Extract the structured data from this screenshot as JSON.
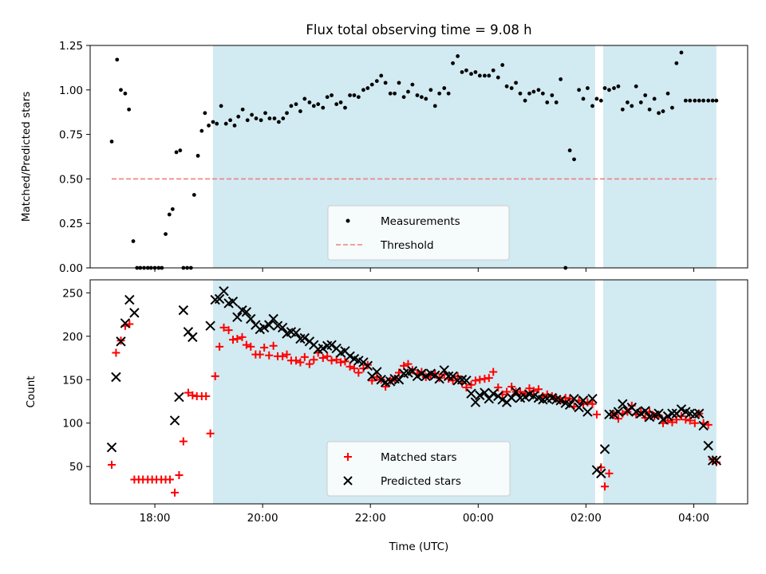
{
  "title": "Flux total observing time = 9.08 h",
  "colors": {
    "shade": "#add8e6",
    "measurement": "#000000",
    "threshold": "#f08080",
    "matched": "#ff0000",
    "predicted": "#000000"
  },
  "chart_data": [
    {
      "type": "scatter",
      "name": "ratio-panel",
      "ylabel": "Matched/Predicted stars",
      "x_range_hours": [
        16.8,
        29.0
      ],
      "ylim": [
        0,
        1.25
      ],
      "yticks": [
        0.0,
        0.25,
        0.5,
        0.75,
        1.0,
        1.25
      ],
      "ytick_labels": [
        "0.00",
        "0.25",
        "0.50",
        "0.75",
        "1.00",
        "1.25"
      ],
      "shaded_intervals_hours": [
        [
          19.08,
          26.17
        ],
        [
          26.32,
          28.42
        ]
      ],
      "threshold": {
        "value": 0.5,
        "x_start": 17.2,
        "x_end": 28.42,
        "label": "Threshold"
      },
      "series": [
        {
          "name": "Measurements",
          "x": [
            17.2,
            17.3,
            17.37,
            17.45,
            17.52,
            17.6,
            17.67,
            17.73,
            17.8,
            17.87,
            17.93,
            18.0,
            18.07,
            18.13,
            18.2,
            18.27,
            18.33,
            18.4,
            18.47,
            18.53,
            18.6,
            18.67,
            18.73,
            18.8,
            18.87,
            18.93,
            19.0,
            19.08,
            19.15,
            19.23,
            19.32,
            19.4,
            19.48,
            19.55,
            19.63,
            19.72,
            19.8,
            19.88,
            19.97,
            20.05,
            20.13,
            20.22,
            20.3,
            20.38,
            20.45,
            20.53,
            20.62,
            20.7,
            20.78,
            20.87,
            20.95,
            21.03,
            21.12,
            21.2,
            21.28,
            21.37,
            21.45,
            21.53,
            21.62,
            21.7,
            21.78,
            21.87,
            21.95,
            22.03,
            22.12,
            22.2,
            22.28,
            22.37,
            22.45,
            22.53,
            22.62,
            22.7,
            22.78,
            22.87,
            22.95,
            23.03,
            23.12,
            23.2,
            23.28,
            23.37,
            23.45,
            23.53,
            23.62,
            23.7,
            23.78,
            23.87,
            23.95,
            24.03,
            24.12,
            24.2,
            24.28,
            24.37,
            24.45,
            24.53,
            24.62,
            24.7,
            24.78,
            24.87,
            24.95,
            25.03,
            25.12,
            25.2,
            25.28,
            25.37,
            25.45,
            25.53,
            25.62,
            25.7,
            25.78,
            25.87,
            25.95,
            26.03,
            26.12,
            26.2,
            26.28,
            26.35,
            26.43,
            26.52,
            26.6,
            26.68,
            26.77,
            26.85,
            26.93,
            27.02,
            27.1,
            27.18,
            27.27,
            27.35,
            27.43,
            27.52,
            27.6,
            27.68,
            27.77,
            27.85,
            27.93,
            28.02,
            28.1,
            28.18,
            28.27,
            28.35,
            28.42
          ],
          "y": [
            0.71,
            1.17,
            1.0,
            0.98,
            0.89,
            0.15,
            0.0,
            0.0,
            0.0,
            0.0,
            0.0,
            0.0,
            0.0,
            0.0,
            0.19,
            0.3,
            0.33,
            0.65,
            0.66,
            0.0,
            0.0,
            0.0,
            0.41,
            0.63,
            0.77,
            0.87,
            0.8,
            0.82,
            0.81,
            0.91,
            0.81,
            0.83,
            0.8,
            0.85,
            0.89,
            0.83,
            0.86,
            0.84,
            0.83,
            0.87,
            0.84,
            0.84,
            0.82,
            0.84,
            0.87,
            0.91,
            0.92,
            0.88,
            0.95,
            0.93,
            0.91,
            0.92,
            0.9,
            0.96,
            0.97,
            0.92,
            0.93,
            0.9,
            0.97,
            0.97,
            0.96,
            1.0,
            1.01,
            1.03,
            1.05,
            1.08,
            1.04,
            0.98,
            0.98,
            1.04,
            0.96,
            0.99,
            1.03,
            0.97,
            0.96,
            0.95,
            1.0,
            0.91,
            0.98,
            1.01,
            0.98,
            1.15,
            1.19,
            1.1,
            1.11,
            1.09,
            1.1,
            1.08,
            1.08,
            1.08,
            1.11,
            1.07,
            1.14,
            1.02,
            1.01,
            1.04,
            0.98,
            0.94,
            0.98,
            0.99,
            1.0,
            0.98,
            0.93,
            0.97,
            0.93,
            1.06,
            0.0,
            0.66,
            0.61,
            1.0,
            0.95,
            1.01,
            0.91,
            0.95,
            0.94,
            1.01,
            1.0,
            1.01,
            1.02,
            0.89,
            0.93,
            0.91,
            1.02,
            0.93,
            0.97,
            0.89,
            0.95,
            0.87,
            0.88,
            0.98,
            0.9,
            1.15,
            1.21,
            0.94,
            0.94,
            0.94,
            0.94,
            0.94,
            0.94,
            0.94,
            0.94
          ]
        }
      ]
    },
    {
      "type": "scatter",
      "name": "count-panel",
      "xlabel": "Time (UTC)",
      "ylabel": "Count",
      "x_range_hours": [
        16.8,
        29.0
      ],
      "xticks_hours": [
        18,
        20,
        22,
        24,
        26,
        28
      ],
      "xtick_labels": [
        "18:00",
        "20:00",
        "22:00",
        "00:00",
        "02:00",
        "04:00"
      ],
      "ylim": [
        7,
        265
      ],
      "yticks": [
        50,
        100,
        150,
        200,
        250
      ],
      "ytick_labels": [
        "50",
        "100",
        "150",
        "200",
        "250"
      ],
      "shaded_intervals_hours": [
        [
          19.08,
          26.17
        ],
        [
          26.32,
          28.42
        ]
      ],
      "series": [
        {
          "name": "Matched stars",
          "marker": "plus",
          "x": [
            17.2,
            17.28,
            17.37,
            17.45,
            17.53,
            17.62,
            17.7,
            17.78,
            17.87,
            17.95,
            18.03,
            18.12,
            18.2,
            18.28,
            18.37,
            18.45,
            18.53,
            18.62,
            18.7,
            18.78,
            18.87,
            18.95,
            19.03,
            19.12,
            19.2,
            19.28,
            19.37,
            19.45,
            19.53,
            19.62,
            19.7,
            19.78,
            19.87,
            19.95,
            20.03,
            20.12,
            20.2,
            20.28,
            20.37,
            20.45,
            20.53,
            20.62,
            20.7,
            20.78,
            20.87,
            20.95,
            21.03,
            21.12,
            21.2,
            21.28,
            21.37,
            21.45,
            21.53,
            21.62,
            21.7,
            21.78,
            21.87,
            21.95,
            22.03,
            22.12,
            22.2,
            22.28,
            22.37,
            22.45,
            22.53,
            22.62,
            22.7,
            22.78,
            22.87,
            22.95,
            23.03,
            23.12,
            23.2,
            23.28,
            23.37,
            23.45,
            23.53,
            23.62,
            23.7,
            23.78,
            23.87,
            23.95,
            24.03,
            24.12,
            24.2,
            24.28,
            24.37,
            24.45,
            24.53,
            24.62,
            24.7,
            24.78,
            24.87,
            24.95,
            25.03,
            25.12,
            25.2,
            25.28,
            25.37,
            25.45,
            25.53,
            25.62,
            25.7,
            25.78,
            25.87,
            25.95,
            26.03,
            26.12,
            26.2,
            26.28,
            26.35,
            26.43,
            26.52,
            26.6,
            26.68,
            26.77,
            26.85,
            26.93,
            27.02,
            27.1,
            27.18,
            27.27,
            27.35,
            27.43,
            27.52,
            27.6,
            27.68,
            27.77,
            27.85,
            27.93,
            28.02,
            28.1,
            28.18,
            28.27,
            28.35,
            28.42
          ],
          "y": [
            52,
            181,
            195,
            212,
            214,
            35,
            35,
            35,
            35,
            35,
            35,
            35,
            35,
            35,
            20,
            40,
            79,
            135,
            132,
            131,
            131,
            131,
            88,
            154,
            188,
            210,
            207,
            196,
            197,
            199,
            190,
            188,
            179,
            179,
            187,
            178,
            189,
            177,
            177,
            179,
            172,
            172,
            170,
            176,
            168,
            173,
            181,
            175,
            177,
            172,
            173,
            170,
            171,
            165,
            163,
            158,
            163,
            167,
            149,
            153,
            150,
            142,
            149,
            151,
            158,
            166,
            168,
            161,
            157,
            159,
            153,
            155,
            157,
            152,
            156,
            151,
            149,
            154,
            146,
            141,
            144,
            149,
            150,
            151,
            152,
            159,
            141,
            133,
            136,
            142,
            136,
            136,
            134,
            140,
            137,
            139,
            131,
            133,
            131,
            129,
            126,
            129,
            128,
            119,
            126,
            122,
            124,
            122,
            110,
            49,
            27,
            42,
            110,
            105,
            111,
            113,
            120,
            110,
            113,
            106,
            113,
            108,
            109,
            100,
            103,
            101,
            104,
            108,
            104,
            103,
            100,
            111,
            100,
            98,
            58,
            55
          ]
        },
        {
          "name": "Predicted stars",
          "marker": "x",
          "x": [
            17.2,
            17.28,
            17.37,
            17.45,
            17.53,
            17.62,
            18.37,
            18.45,
            18.53,
            18.62,
            18.7,
            19.03,
            19.12,
            19.2,
            19.28,
            19.37,
            19.45,
            19.53,
            19.62,
            19.7,
            19.78,
            19.87,
            19.95,
            20.03,
            20.12,
            20.2,
            20.28,
            20.37,
            20.45,
            20.53,
            20.62,
            20.7,
            20.78,
            20.87,
            20.95,
            21.03,
            21.12,
            21.2,
            21.28,
            21.37,
            21.45,
            21.53,
            21.62,
            21.7,
            21.78,
            21.87,
            21.95,
            22.03,
            22.12,
            22.2,
            22.28,
            22.37,
            22.45,
            22.53,
            22.62,
            22.7,
            22.78,
            22.87,
            22.95,
            23.03,
            23.12,
            23.2,
            23.28,
            23.37,
            23.45,
            23.53,
            23.62,
            23.7,
            23.78,
            23.87,
            23.95,
            24.03,
            24.12,
            24.2,
            24.28,
            24.37,
            24.45,
            24.53,
            24.62,
            24.7,
            24.78,
            24.87,
            24.95,
            25.03,
            25.12,
            25.2,
            25.28,
            25.37,
            25.45,
            25.53,
            25.62,
            25.7,
            25.78,
            25.87,
            25.95,
            26.03,
            26.12,
            26.2,
            26.28,
            26.35,
            26.43,
            26.52,
            26.6,
            26.68,
            26.77,
            26.85,
            26.93,
            27.02,
            27.1,
            27.18,
            27.27,
            27.35,
            27.43,
            27.52,
            27.6,
            27.68,
            27.77,
            27.85,
            27.93,
            28.02,
            28.1,
            28.18,
            28.27,
            28.35,
            28.42
          ],
          "y": [
            72,
            153,
            194,
            215,
            242,
            227,
            103,
            130,
            230,
            205,
            199,
            212,
            242,
            243,
            252,
            238,
            240,
            222,
            230,
            228,
            220,
            213,
            208,
            210,
            213,
            220,
            212,
            210,
            203,
            205,
            204,
            197,
            198,
            194,
            190,
            185,
            186,
            189,
            190,
            186,
            181,
            183,
            177,
            174,
            172,
            170,
            166,
            154,
            159,
            150,
            147,
            148,
            151,
            150,
            157,
            158,
            160,
            154,
            157,
            154,
            157,
            155,
            151,
            161,
            154,
            154,
            149,
            150,
            149,
            134,
            124,
            132,
            135,
            128,
            134,
            131,
            127,
            124,
            129,
            136,
            129,
            130,
            133,
            131,
            129,
            127,
            128,
            129,
            127,
            126,
            123,
            121,
            128,
            118,
            126,
            113,
            128,
            46,
            42,
            70,
            110,
            110,
            113,
            122,
            114,
            118,
            113,
            111,
            114,
            107,
            109,
            111,
            104,
            108,
            111,
            111,
            116,
            113,
            111,
            110,
            111,
            97,
            74,
            57,
            57
          ]
        }
      ]
    }
  ]
}
